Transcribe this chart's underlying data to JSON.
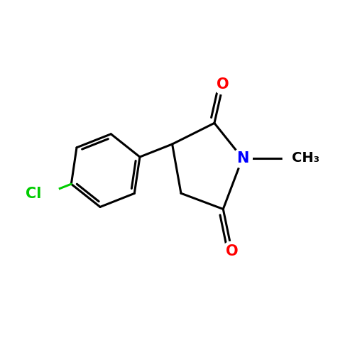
{
  "background_color": "#ffffff",
  "bond_color": "#000000",
  "bond_width": 2.2,
  "atom_colors": {
    "O": "#ff0000",
    "N": "#0000ff",
    "Cl": "#00cc00",
    "C": "#000000"
  },
  "font_size_atoms": 15,
  "font_size_methyl": 14,
  "figsize": [
    5.0,
    5.0
  ],
  "dpi": 100
}
